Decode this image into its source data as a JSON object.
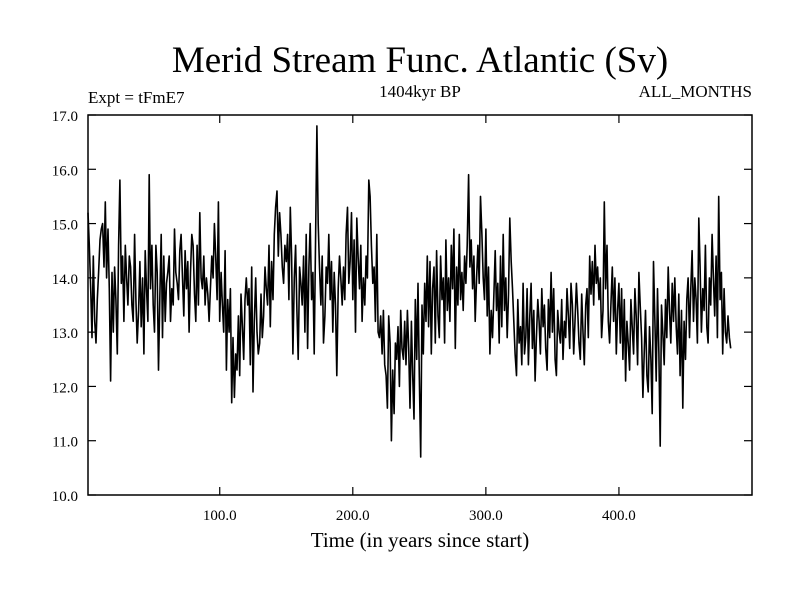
{
  "chart_data": {
    "type": "line",
    "title": "Merid Stream Func. Atlantic (Sv)",
    "subtitle_left": "Expt = tFmE7",
    "subtitle_center": "1404kyr BP",
    "subtitle_right": "ALL_MONTHS",
    "xlabel": "Time (in years since start)",
    "ylabel": "",
    "xlim": [
      1,
      500
    ],
    "ylim": [
      10.0,
      17.0
    ],
    "x_ticks": [
      100,
      200,
      300,
      400
    ],
    "x_tick_labels": [
      "100.0",
      "200.0",
      "300.0",
      "400.0"
    ],
    "y_ticks": [
      10,
      11,
      12,
      13,
      14,
      15,
      16,
      17
    ],
    "y_tick_labels": [
      "10.0",
      "11.0",
      "12.0",
      "13.0",
      "14.0",
      "15.0",
      "16.0",
      "17.0"
    ],
    "grid": false,
    "series": [
      {
        "name": "Merid Stream Func. Atlantic",
        "color": "#000000",
        "x_start": 1,
        "x_step": 1,
        "values": [
          15.2,
          14.6,
          13.8,
          12.9,
          14.4,
          13.2,
          12.8,
          13.6,
          14.1,
          14.7,
          14.9,
          15.0,
          14.2,
          15.4,
          14.0,
          14.9,
          13.8,
          12.1,
          14.1,
          13.0,
          14.2,
          13.6,
          12.6,
          14.6,
          15.8,
          13.9,
          14.4,
          13.2,
          14.6,
          14.0,
          13.5,
          14.4,
          14.2,
          13.5,
          13.2,
          14.8,
          13.6,
          12.8,
          13.4,
          14.3,
          13.1,
          14.0,
          12.6,
          14.5,
          13.8,
          13.2,
          15.9,
          13.8,
          14.6,
          13.5,
          13.0,
          14.6,
          14.1,
          12.3,
          13.7,
          14.8,
          12.9,
          14.4,
          13.2,
          13.9,
          14.1,
          14.4,
          13.2,
          13.8,
          13.5,
          14.9,
          14.1,
          13.9,
          13.6,
          14.5,
          14.8,
          14.0,
          13.3,
          14.5,
          13.8,
          14.3,
          13.0,
          14.1,
          14.8,
          14.6,
          13.7,
          13.2,
          14.6,
          13.5,
          15.2,
          14.0,
          13.8,
          14.4,
          13.5,
          14.0,
          13.7,
          13.2,
          13.8,
          14.4,
          14.0,
          15.0,
          14.4,
          13.6,
          15.4,
          13.2,
          14.1,
          13.5,
          13.0,
          14.5,
          12.3,
          13.6,
          13.0,
          13.8,
          11.7,
          12.9,
          11.8,
          12.6,
          12.3,
          13.3,
          12.2,
          13.7,
          13.1,
          12.5,
          13.6,
          14.0,
          13.5,
          13.8,
          12.4,
          14.2,
          11.9,
          13.2,
          14.0,
          13.0,
          12.6,
          12.8,
          13.7,
          12.9,
          13.3,
          14.2,
          13.8,
          13.5,
          14.6,
          13.1,
          14.3,
          13.6,
          14.8,
          15.3,
          15.6,
          14.4,
          15.2,
          14.8,
          14.2,
          13.9,
          14.6,
          14.3,
          14.8,
          13.6,
          15.3,
          14.4,
          12.6,
          14.0,
          14.6,
          13.4,
          12.5,
          14.2,
          13.9,
          13.5,
          14.4,
          13.0,
          14.8,
          12.7,
          14.2,
          15.0,
          13.6,
          14.1,
          12.6,
          14.6,
          16.8,
          15.0,
          14.2,
          13.5,
          14.4,
          12.8,
          13.3,
          14.2,
          13.9,
          14.8,
          13.6,
          14.3,
          13.0,
          14.1,
          13.5,
          12.2,
          13.8,
          14.4,
          14.0,
          13.5,
          14.2,
          13.6,
          14.8,
          15.3,
          13.9,
          14.3,
          15.2,
          13.6,
          14.7,
          13.0,
          15.1,
          14.4,
          13.8,
          14.6,
          13.2,
          14.0,
          13.5,
          14.4,
          14.0,
          15.8,
          15.5,
          14.6,
          13.9,
          14.2,
          13.2,
          14.8,
          13.0,
          12.9,
          13.3,
          12.6,
          13.4,
          12.4,
          12.2,
          11.6,
          13.3,
          12.8,
          11.0,
          12.3,
          11.5,
          12.8,
          12.5,
          13.1,
          12.0,
          13.4,
          12.7,
          12.5,
          13.2,
          12.4,
          13.4,
          12.7,
          11.6,
          13.2,
          12.2,
          11.4,
          13.6,
          12.5,
          13.9,
          12.2,
          10.7,
          13.5,
          12.6,
          13.9,
          13.2,
          14.4,
          13.1,
          14.3,
          12.6,
          13.8,
          14.2,
          12.8,
          14.5,
          13.3,
          12.9,
          14.4,
          13.6,
          14.0,
          12.8,
          14.7,
          13.4,
          14.0,
          13.2,
          14.6,
          13.8,
          14.9,
          12.7,
          14.2,
          13.5,
          14.8,
          13.6,
          14.1,
          13.4,
          14.4,
          13.9,
          14.6,
          15.9,
          14.2,
          14.7,
          13.8,
          14.4,
          13.2,
          14.0,
          14.6,
          13.9,
          15.5,
          14.8,
          14.0,
          13.6,
          14.9,
          13.3,
          14.2,
          12.6,
          13.4,
          12.9,
          13.7,
          14.5,
          13.4,
          13.9,
          12.8,
          14.4,
          13.1,
          14.8,
          13.4,
          14.0,
          12.9,
          13.7,
          15.1,
          14.3,
          13.8,
          13.2,
          12.6,
          12.2,
          13.6,
          12.8,
          13.1,
          12.4,
          13.9,
          12.6,
          12.9,
          13.8,
          12.4,
          13.3,
          13.9,
          12.7,
          13.4,
          12.1,
          12.9,
          13.6,
          13.2,
          12.6,
          13.8,
          13.1,
          13.5,
          12.7,
          12.3,
          13.6,
          12.9,
          14.1,
          13.0,
          13.8,
          12.5,
          12.2,
          13.4,
          13.0,
          12.8,
          13.6,
          12.5,
          13.2,
          12.9,
          13.8,
          13.3,
          12.7,
          13.9,
          13.5,
          12.6,
          13.2,
          13.9,
          13.4,
          12.8,
          12.5,
          13.7,
          13.0,
          12.4,
          13.5,
          13.8,
          12.9,
          14.4,
          13.7,
          14.3,
          13.5,
          14.6,
          13.9,
          14.2,
          13.6,
          14.0,
          12.9,
          13.4,
          15.4,
          13.8,
          14.6,
          13.2,
          12.8,
          13.5,
          14.2,
          13.2,
          14.0,
          12.6,
          13.4,
          13.9,
          12.8,
          13.8,
          12.5,
          13.6,
          12.1,
          13.2,
          12.8,
          12.3,
          13.6,
          13.1,
          12.6,
          13.8,
          13.3,
          12.4,
          14.1,
          13.5,
          12.9,
          11.8,
          12.6,
          13.4,
          12.2,
          11.9,
          13.1,
          12.5,
          11.5,
          14.3,
          13.2,
          12.1,
          13.8,
          12.6,
          10.9,
          13.5,
          13.0,
          12.4,
          13.6,
          12.9,
          14.2,
          13.4,
          12.8,
          13.9,
          13.2,
          14.0,
          13.1,
          12.6,
          13.7,
          12.2,
          13.4,
          11.6,
          13.2,
          12.5,
          13.6,
          14.0,
          12.9,
          13.8,
          14.5,
          13.2,
          14.0,
          13.6,
          12.8,
          15.1,
          14.2,
          13.0,
          13.8,
          13.4,
          14.6,
          13.1,
          12.8,
          14.0,
          13.5,
          14.8,
          14.0,
          13.3,
          14.4,
          12.9,
          15.5,
          13.6,
          14.1,
          12.6,
          13.8,
          13.0,
          12.8,
          13.3,
          12.9,
          12.7
        ]
      }
    ]
  }
}
